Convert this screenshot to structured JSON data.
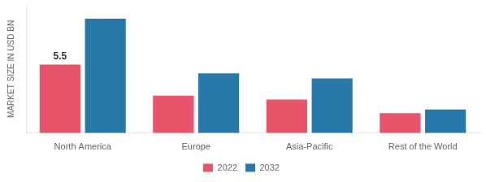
{
  "chart_data": {
    "type": "bar",
    "categories": [
      "North America",
      "Europe",
      "Asia-Pacific",
      "Rest of the World"
    ],
    "series": [
      {
        "name": "2022",
        "color": "#e8546a",
        "values": [
          5.5,
          3.0,
          2.7,
          1.6
        ]
      },
      {
        "name": "2032",
        "color": "#2878a8",
        "values": [
          9.2,
          4.8,
          4.4,
          1.9
        ]
      }
    ],
    "y_label": "MARKET SIZE IN USD BN",
    "ylim": [
      0,
      10.304
    ],
    "annotations": [
      {
        "text": "5.5",
        "x": "North America",
        "series": "2022",
        "y": 5.5
      }
    ],
    "grid": false,
    "legend": "bottom",
    "tick_labels": "x"
  }
}
